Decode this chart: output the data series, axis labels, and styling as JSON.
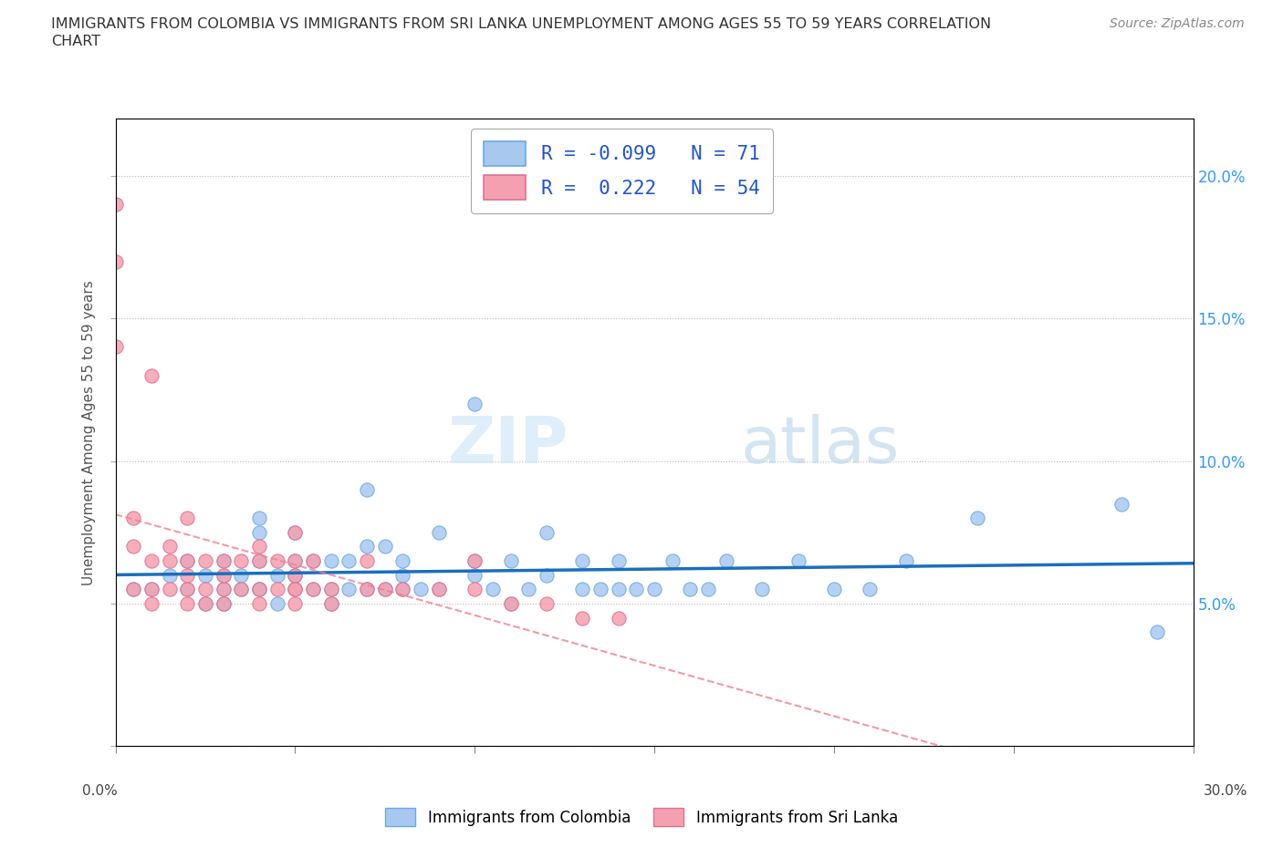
{
  "title": "IMMIGRANTS FROM COLOMBIA VS IMMIGRANTS FROM SRI LANKA UNEMPLOYMENT AMONG AGES 55 TO 59 YEARS CORRELATION\nCHART",
  "source": "Source: ZipAtlas.com",
  "ylabel": "Unemployment Among Ages 55 to 59 years",
  "xlim": [
    0.0,
    0.3
  ],
  "ylim": [
    0.0,
    0.22
  ],
  "xticks": [
    0.0,
    0.05,
    0.1,
    0.15,
    0.2,
    0.25,
    0.3
  ],
  "yticks": [
    0.0,
    0.05,
    0.1,
    0.15,
    0.2
  ],
  "right_yticklabels": [
    "",
    "5.0%",
    "10.0%",
    "15.0%",
    "20.0%"
  ],
  "bottom_xticklabels_outer": [
    "0.0%",
    "",
    "",
    "",
    "",
    "",
    "30.0%"
  ],
  "colombia_color": "#a8c8f0",
  "srilanka_color": "#f5a0b0",
  "colombia_line_color": "#1a6fbd",
  "srilanka_line_color": "#f08090",
  "R_colombia": -0.099,
  "N_colombia": 71,
  "R_srilanka": 0.222,
  "N_srilanka": 54,
  "legend_label_colombia": "Immigrants from Colombia",
  "legend_label_srilanka": "Immigrants from Sri Lanka",
  "watermark_zip": "ZIP",
  "watermark_atlas": "atlas",
  "colombia_x": [
    0.005,
    0.01,
    0.015,
    0.02,
    0.02,
    0.025,
    0.025,
    0.03,
    0.03,
    0.03,
    0.03,
    0.03,
    0.035,
    0.035,
    0.04,
    0.04,
    0.04,
    0.04,
    0.04,
    0.045,
    0.045,
    0.05,
    0.05,
    0.05,
    0.05,
    0.055,
    0.055,
    0.06,
    0.06,
    0.06,
    0.065,
    0.065,
    0.07,
    0.07,
    0.07,
    0.075,
    0.075,
    0.08,
    0.08,
    0.08,
    0.085,
    0.09,
    0.09,
    0.1,
    0.1,
    0.1,
    0.105,
    0.11,
    0.11,
    0.115,
    0.12,
    0.12,
    0.13,
    0.13,
    0.135,
    0.14,
    0.14,
    0.145,
    0.15,
    0.155,
    0.16,
    0.165,
    0.17,
    0.18,
    0.19,
    0.2,
    0.21,
    0.22,
    0.24,
    0.28,
    0.29
  ],
  "colombia_y": [
    0.055,
    0.055,
    0.06,
    0.055,
    0.065,
    0.05,
    0.06,
    0.05,
    0.055,
    0.06,
    0.065,
    0.05,
    0.055,
    0.06,
    0.055,
    0.065,
    0.075,
    0.08,
    0.055,
    0.05,
    0.06,
    0.055,
    0.06,
    0.065,
    0.075,
    0.055,
    0.065,
    0.05,
    0.055,
    0.065,
    0.055,
    0.065,
    0.055,
    0.07,
    0.09,
    0.055,
    0.07,
    0.06,
    0.055,
    0.065,
    0.055,
    0.055,
    0.075,
    0.06,
    0.065,
    0.12,
    0.055,
    0.05,
    0.065,
    0.055,
    0.06,
    0.075,
    0.055,
    0.065,
    0.055,
    0.055,
    0.065,
    0.055,
    0.055,
    0.065,
    0.055,
    0.055,
    0.065,
    0.055,
    0.065,
    0.055,
    0.055,
    0.065,
    0.08,
    0.085,
    0.04
  ],
  "srilanka_x": [
    0.0,
    0.0,
    0.0,
    0.005,
    0.005,
    0.005,
    0.01,
    0.01,
    0.01,
    0.01,
    0.015,
    0.015,
    0.015,
    0.02,
    0.02,
    0.02,
    0.02,
    0.02,
    0.025,
    0.025,
    0.025,
    0.03,
    0.03,
    0.03,
    0.03,
    0.035,
    0.035,
    0.04,
    0.04,
    0.04,
    0.04,
    0.045,
    0.045,
    0.05,
    0.05,
    0.05,
    0.05,
    0.05,
    0.05,
    0.055,
    0.055,
    0.06,
    0.06,
    0.07,
    0.07,
    0.075,
    0.08,
    0.09,
    0.1,
    0.1,
    0.11,
    0.12,
    0.13,
    0.14
  ],
  "srilanka_y": [
    0.17,
    0.19,
    0.14,
    0.07,
    0.08,
    0.055,
    0.055,
    0.065,
    0.05,
    0.13,
    0.065,
    0.055,
    0.07,
    0.055,
    0.065,
    0.05,
    0.06,
    0.08,
    0.065,
    0.055,
    0.05,
    0.065,
    0.055,
    0.05,
    0.06,
    0.055,
    0.065,
    0.055,
    0.065,
    0.07,
    0.05,
    0.055,
    0.065,
    0.055,
    0.065,
    0.05,
    0.06,
    0.055,
    0.075,
    0.055,
    0.065,
    0.055,
    0.05,
    0.055,
    0.065,
    0.055,
    0.055,
    0.055,
    0.055,
    0.065,
    0.05,
    0.05,
    0.045,
    0.045
  ]
}
